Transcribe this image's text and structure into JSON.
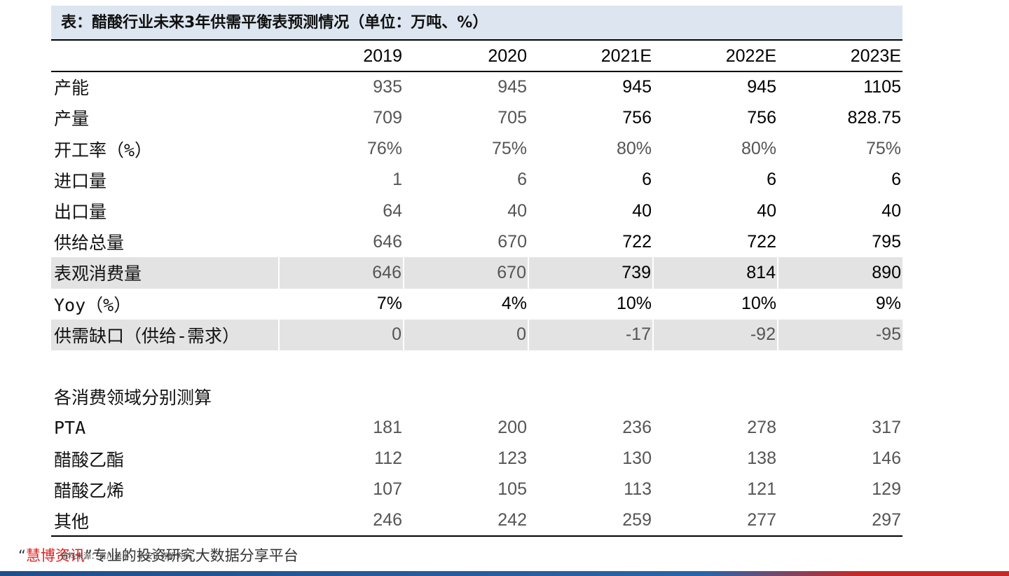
{
  "title": "表：醋酸行业未来3年供需平衡表预测情况（单位：万吨、%）",
  "columns": [
    "2019",
    "2020",
    "2021E",
    "2022E",
    "2023E"
  ],
  "rows": [
    {
      "label": "产能",
      "values": [
        "935",
        "945",
        "945",
        "945",
        "1105"
      ]
    },
    {
      "label": "产量",
      "values": [
        "709",
        "705",
        "756",
        "756",
        "828.75"
      ]
    },
    {
      "label": "开工率（%）",
      "values": [
        "76%",
        "75%",
        "80%",
        "80%",
        "75%"
      ]
    },
    {
      "label": "进口量",
      "values": [
        "1",
        "6",
        "6",
        "6",
        "6"
      ]
    },
    {
      "label": "出口量",
      "values": [
        "64",
        "40",
        "40",
        "40",
        "40"
      ]
    },
    {
      "label": "供给总量",
      "values": [
        "646",
        "670",
        "722",
        "722",
        "795"
      ]
    },
    {
      "label": "表观消费量",
      "values": [
        "646",
        "670",
        "739",
        "814",
        "890"
      ]
    },
    {
      "label": "Yoy（%）",
      "values": [
        "7%",
        "4%",
        "10%",
        "10%",
        "9%"
      ]
    },
    {
      "label": "供需缺口（供给-需求）",
      "values": [
        "0",
        "0",
        "-17",
        "-92",
        "-95"
      ]
    }
  ],
  "section_label": "各消费领域分别测算",
  "segments": [
    {
      "label": "PTA",
      "values": [
        "181",
        "200",
        "236",
        "278",
        "317"
      ]
    },
    {
      "label": "醋酸乙酯",
      "values": [
        "112",
        "123",
        "130",
        "138",
        "146"
      ]
    },
    {
      "label": "醋酸乙烯",
      "values": [
        "107",
        "105",
        "113",
        "121",
        "129"
      ]
    },
    {
      "label": "其他",
      "values": [
        "246",
        "242",
        "259",
        "277",
        "297"
      ]
    }
  ],
  "footer": {
    "open_quote": "“",
    "brand": "慧博资讯",
    "close_quote": "”",
    "slogan": "专业的投资研究大数据分享平台",
    "source_note": "资料来源：百川盈孚，华安证券研究所"
  },
  "colors": {
    "title_bg": "#dde6f0",
    "shade_bg": "#e3e3e3",
    "historical_text": "#555555",
    "forecast_text": "#000000",
    "brand": "#dd2222"
  }
}
